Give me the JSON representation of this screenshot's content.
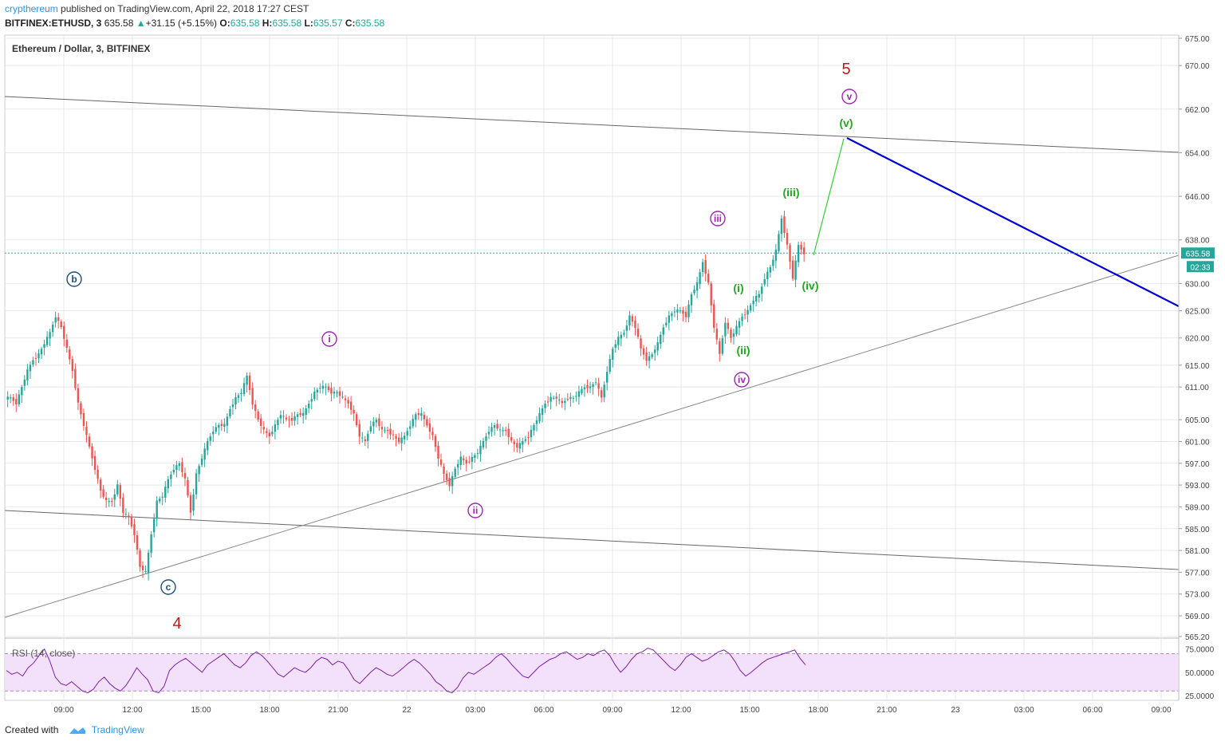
{
  "header": {
    "author": "crypthereum",
    "published_text": " published on TradingView.com, April 22, 2018 17:27 CEST",
    "symbol": "BITFINEX:ETHUSD, 3",
    "last": "635.58",
    "change": "+31.15 (+5.15%)",
    "o_label": "O:",
    "o": "635.58",
    "h_label": "H:",
    "h": "635.58",
    "l_label": "L:",
    "l": "635.57",
    "c_label": "C:",
    "c": "635.58"
  },
  "chart_title": "Ethereum / Dollar, 3, BITFINEX",
  "price_tag": "635.58",
  "countdown_tag": "02:33",
  "rsi_label": "RSI (14, close)",
  "footer": {
    "created_with": "Created with",
    "brand": "TradingView"
  },
  "colors": {
    "up": "#26a69a",
    "down": "#ef5350",
    "green": "#22a722",
    "purple": "#9c27b0",
    "dark_red": "#b71c1c",
    "navy": "#1f4e79",
    "blue_line": "#0000cc",
    "grid": "#e8e8e8",
    "rsi_fill": "#f3e0fa",
    "rsi_line": "#7b1fa2",
    "last_price": "#26a69a"
  },
  "chart_data": {
    "type": "line",
    "series": [
      {
        "values": [
          [
            0,
            609
          ],
          [
            2,
            609
          ],
          [
            4,
            608
          ],
          [
            6,
            611
          ],
          [
            8,
            614
          ],
          [
            10,
            616
          ],
          [
            12,
            617
          ],
          [
            14,
            619
          ],
          [
            16,
            621
          ],
          [
            18,
            624
          ],
          [
            20,
            622
          ],
          [
            22,
            618
          ],
          [
            24,
            614
          ],
          [
            26,
            608
          ],
          [
            28,
            604
          ],
          [
            30,
            600
          ],
          [
            32,
            596
          ],
          [
            34,
            592
          ],
          [
            36,
            590
          ],
          [
            38,
            590
          ],
          [
            40,
            593
          ],
          [
            42,
            588
          ],
          [
            44,
            587
          ],
          [
            46,
            584
          ],
          [
            48,
            578
          ],
          [
            50,
            577
          ],
          [
            52,
            584
          ],
          [
            54,
            590
          ],
          [
            56,
            591
          ],
          [
            58,
            594
          ],
          [
            60,
            596
          ],
          [
            62,
            597
          ],
          [
            64,
            594
          ],
          [
            66,
            588
          ],
          [
            68,
            595
          ],
          [
            70,
            598
          ],
          [
            72,
            601
          ],
          [
            74,
            603
          ],
          [
            76,
            604
          ],
          [
            78,
            604
          ],
          [
            80,
            607
          ],
          [
            82,
            609
          ],
          [
            84,
            610
          ],
          [
            86,
            613
          ],
          [
            88,
            608
          ],
          [
            90,
            605
          ],
          [
            92,
            603
          ],
          [
            94,
            602
          ],
          [
            96,
            604
          ],
          [
            98,
            606
          ],
          [
            100,
            605
          ],
          [
            102,
            605
          ],
          [
            104,
            606
          ],
          [
            106,
            606
          ],
          [
            108,
            608
          ],
          [
            110,
            610
          ],
          [
            112,
            611
          ],
          [
            114,
            611
          ],
          [
            116,
            610
          ],
          [
            118,
            610
          ],
          [
            120,
            609
          ],
          [
            122,
            608
          ],
          [
            124,
            606
          ],
          [
            126,
            602
          ],
          [
            128,
            601
          ],
          [
            130,
            604
          ],
          [
            132,
            605
          ],
          [
            134,
            603
          ],
          [
            136,
            603
          ],
          [
            138,
            602
          ],
          [
            140,
            601
          ],
          [
            142,
            602
          ],
          [
            144,
            604
          ],
          [
            146,
            606
          ],
          [
            148,
            606
          ],
          [
            150,
            604
          ],
          [
            152,
            602
          ],
          [
            154,
            598
          ],
          [
            156,
            595
          ],
          [
            158,
            593
          ],
          [
            160,
            596
          ],
          [
            162,
            598
          ],
          [
            164,
            597
          ],
          [
            166,
            598
          ],
          [
            168,
            599
          ],
          [
            170,
            601
          ],
          [
            172,
            603
          ],
          [
            174,
            604
          ],
          [
            176,
            603
          ],
          [
            178,
            603
          ],
          [
            180,
            601
          ],
          [
            182,
            600
          ],
          [
            184,
            601
          ],
          [
            186,
            602
          ],
          [
            188,
            604
          ],
          [
            190,
            606
          ],
          [
            192,
            608
          ],
          [
            194,
            609
          ],
          [
            196,
            609
          ],
          [
            198,
            608
          ],
          [
            200,
            609
          ],
          [
            202,
            609
          ],
          [
            204,
            610
          ],
          [
            206,
            611
          ],
          [
            208,
            611
          ],
          [
            210,
            612
          ],
          [
            212,
            609
          ],
          [
            214,
            614
          ],
          [
            216,
            618
          ],
          [
            218,
            620
          ],
          [
            220,
            621
          ],
          [
            222,
            624
          ],
          [
            224,
            622
          ],
          [
            226,
            618
          ],
          [
            228,
            616
          ],
          [
            230,
            617
          ],
          [
            232,
            619
          ],
          [
            234,
            622
          ],
          [
            236,
            624
          ],
          [
            238,
            625
          ],
          [
            240,
            625
          ],
          [
            242,
            624
          ],
          [
            244,
            628
          ],
          [
            246,
            630
          ],
          [
            248,
            634
          ],
          [
            250,
            630
          ],
          [
            252,
            622
          ],
          [
            254,
            617
          ],
          [
            256,
            623
          ],
          [
            258,
            620
          ],
          [
            260,
            622
          ],
          [
            262,
            624
          ],
          [
            264,
            625
          ],
          [
            266,
            627
          ],
          [
            268,
            628
          ],
          [
            270,
            631
          ],
          [
            272,
            633
          ],
          [
            274,
            636
          ],
          [
            276,
            642
          ],
          [
            278,
            637
          ],
          [
            280,
            631
          ],
          [
            282,
            637
          ],
          [
            284,
            635.58
          ]
        ]
      }
    ],
    "x_ticks": [
      "09:00",
      "12:00",
      "15:00",
      "18:00",
      "21:00",
      "22",
      "03:00",
      "06:00",
      "09:00",
      "12:00",
      "15:00",
      "18:00",
      "21:00",
      "23",
      "03:00",
      "06:00",
      "09:00"
    ],
    "y_ticks": [
      "675.00",
      "670.00",
      "662.00",
      "654.00",
      "646.00",
      "638.00",
      "630.00",
      "625.00",
      "620.00",
      "615.00",
      "611.00",
      "605.00",
      "601.00",
      "597.00",
      "593.00",
      "589.00",
      "585.00",
      "581.00",
      "577.00",
      "573.00",
      "569.00",
      "565.20"
    ],
    "ylim": [
      565.2,
      675
    ],
    "rsi": {
      "ticks": [
        "75.0000",
        "50.0000",
        "25.0000"
      ],
      "ylim": [
        20,
        85
      ],
      "upper": 70,
      "lower": 30,
      "values": [
        52,
        48,
        50,
        46,
        55,
        60,
        68,
        75,
        62,
        45,
        38,
        36,
        40,
        35,
        30,
        28,
        32,
        40,
        45,
        38,
        33,
        30,
        36,
        45,
        55,
        48,
        42,
        30,
        28,
        35,
        52,
        58,
        62,
        65,
        60,
        55,
        50,
        58,
        62,
        66,
        70,
        64,
        58,
        55,
        60,
        68,
        72,
        68,
        62,
        55,
        48,
        45,
        50,
        55,
        52,
        50,
        55,
        62,
        66,
        64,
        58,
        62,
        60,
        52,
        42,
        38,
        44,
        50,
        55,
        52,
        48,
        46,
        50,
        55,
        60,
        64,
        60,
        54,
        48,
        40,
        36,
        30,
        28,
        34,
        44,
        50,
        48,
        52,
        56,
        60,
        66,
        70,
        65,
        58,
        52,
        46,
        44,
        50,
        56,
        60,
        64,
        66,
        70,
        72,
        68,
        64,
        66,
        70,
        68,
        72,
        74,
        68,
        58,
        50,
        56,
        64,
        70,
        72,
        76,
        74,
        68,
        62,
        56,
        52,
        58,
        66,
        70,
        66,
        62,
        64,
        68,
        72,
        74,
        70,
        62,
        52,
        46,
        50,
        55,
        60,
        64,
        66,
        68,
        70,
        72,
        74,
        65,
        58
      ]
    },
    "annotations": [
      {
        "text": "b",
        "style": "circle-navy"
      },
      {
        "text": "c",
        "style": "circle-navy"
      },
      {
        "text": "4",
        "style": "red"
      },
      {
        "text": "i",
        "style": "circle-purple"
      },
      {
        "text": "ii",
        "style": "circle-purple"
      },
      {
        "text": "iii",
        "style": "circle-purple"
      },
      {
        "text": "iv",
        "style": "circle-purple"
      },
      {
        "text": "v",
        "style": "circle-purple"
      },
      {
        "text": "5",
        "style": "red"
      },
      {
        "text": "(i)",
        "style": "green"
      },
      {
        "text": "(ii)",
        "style": "green"
      },
      {
        "text": "(iii)",
        "style": "green"
      },
      {
        "text": "(iv)",
        "style": "green"
      },
      {
        "text": "(v)",
        "style": "green"
      }
    ]
  }
}
